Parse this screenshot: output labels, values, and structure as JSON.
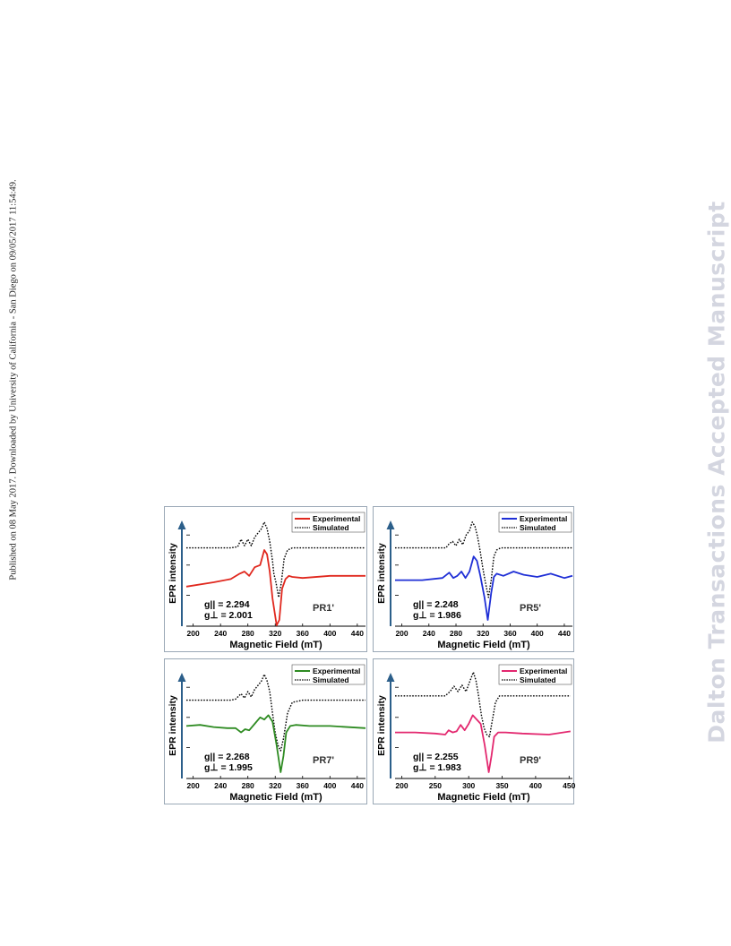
{
  "side_note": "Published on 08 May 2017. Downloaded by University of California - San Diego on 09/05/2017 11:54:49.",
  "watermark": "Dalton Transactions Accepted Manuscript",
  "colors": {
    "simulated": "#000000",
    "axis_arrow": "#2c5f8a",
    "border": "#9aa8b6"
  },
  "chart_data": [
    {
      "type": "line",
      "panel_label": "PR1'",
      "xlabel": "Magnetic Field (mT)",
      "ylabel": "EPR intensity",
      "xticks": [
        200,
        240,
        280,
        320,
        360,
        400,
        440
      ],
      "xlim": [
        190,
        452
      ],
      "g_parallel": "g|| = 2.294",
      "g_perp": "g⊥ = 2.001",
      "series": [
        {
          "name": "Experimental",
          "color": "#e0281e",
          "style": "solid",
          "x": [
            190,
            230,
            255,
            268,
            275,
            282,
            290,
            298,
            304,
            308,
            312,
            316,
            322,
            326,
            330,
            335,
            340,
            345,
            360,
            400,
            452
          ],
          "y": [
            0.36,
            0.4,
            0.43,
            0.48,
            0.5,
            0.46,
            0.54,
            0.56,
            0.7,
            0.66,
            0.5,
            0.25,
            0.0,
            0.05,
            0.34,
            0.43,
            0.46,
            0.45,
            0.44,
            0.46,
            0.46
          ]
        },
        {
          "name": "Simulated",
          "color": "#000000",
          "style": "dotted",
          "x": [
            190,
            255,
            265,
            270,
            275,
            280,
            285,
            290,
            295,
            300,
            304,
            308,
            312,
            316,
            318,
            321,
            325,
            329,
            333,
            338,
            345,
            360,
            452
          ],
          "y": [
            0.72,
            0.72,
            0.73,
            0.8,
            0.74,
            0.8,
            0.74,
            0.82,
            0.86,
            0.9,
            0.96,
            0.9,
            0.78,
            0.6,
            0.48,
            0.4,
            0.26,
            0.4,
            0.62,
            0.7,
            0.72,
            0.72,
            0.72
          ]
        }
      ]
    },
    {
      "type": "line",
      "panel_label": "PR5'",
      "xlabel": "Magnetic Field (mT)",
      "ylabel": "EPR intensity",
      "xticks": [
        200,
        240,
        280,
        320,
        360,
        400,
        440
      ],
      "xlim": [
        190,
        452
      ],
      "g_parallel": "g|| = 2.248",
      "g_perp": "g⊥ = 1.986",
      "series": [
        {
          "name": "Experimental",
          "color": "#1f2fd6",
          "style": "solid",
          "x": [
            190,
            230,
            260,
            270,
            276,
            282,
            288,
            294,
            300,
            306,
            311,
            316,
            322,
            327,
            332,
            336,
            340,
            350,
            365,
            380,
            400,
            420,
            440,
            452
          ],
          "y": [
            0.42,
            0.42,
            0.44,
            0.49,
            0.44,
            0.46,
            0.5,
            0.44,
            0.5,
            0.64,
            0.6,
            0.46,
            0.26,
            0.05,
            0.3,
            0.45,
            0.48,
            0.46,
            0.5,
            0.47,
            0.45,
            0.48,
            0.44,
            0.46
          ]
        },
        {
          "name": "Simulated",
          "color": "#000000",
          "style": "dotted",
          "x": [
            190,
            265,
            270,
            275,
            280,
            285,
            290,
            295,
            300,
            304,
            308,
            312,
            316,
            320,
            324,
            328,
            332,
            336,
            340,
            346,
            360,
            452
          ],
          "y": [
            0.72,
            0.72,
            0.76,
            0.78,
            0.74,
            0.8,
            0.75,
            0.84,
            0.88,
            0.96,
            0.92,
            0.82,
            0.68,
            0.52,
            0.38,
            0.26,
            0.42,
            0.64,
            0.7,
            0.72,
            0.72,
            0.72
          ]
        }
      ]
    },
    {
      "type": "line",
      "panel_label": "PR7'",
      "xlabel": "Magnetic Field (mT)",
      "ylabel": "EPR intensity",
      "xticks": [
        200,
        240,
        280,
        320,
        360,
        400,
        440
      ],
      "xlim": [
        190,
        452
      ],
      "g_parallel": "g|| = 2.268",
      "g_perp": "g⊥ = 1.995",
      "series": [
        {
          "name": "Experimental",
          "color": "#2e8b22",
          "style": "solid",
          "x": [
            190,
            210,
            230,
            250,
            262,
            270,
            276,
            282,
            290,
            298,
            304,
            310,
            316,
            322,
            328,
            332,
            336,
            342,
            350,
            370,
            400,
            452
          ],
          "y": [
            0.48,
            0.49,
            0.47,
            0.46,
            0.46,
            0.42,
            0.45,
            0.44,
            0.5,
            0.56,
            0.54,
            0.58,
            0.52,
            0.3,
            0.05,
            0.2,
            0.42,
            0.48,
            0.49,
            0.48,
            0.48,
            0.46
          ]
        },
        {
          "name": "Simulated",
          "color": "#000000",
          "style": "dotted",
          "x": [
            190,
            255,
            262,
            270,
            275,
            280,
            285,
            290,
            295,
            300,
            304,
            308,
            312,
            316,
            320,
            324,
            328,
            332,
            338,
            345,
            360,
            452
          ],
          "y": [
            0.72,
            0.72,
            0.73,
            0.78,
            0.74,
            0.8,
            0.75,
            0.82,
            0.86,
            0.9,
            0.96,
            0.9,
            0.8,
            0.6,
            0.42,
            0.3,
            0.25,
            0.36,
            0.6,
            0.7,
            0.72,
            0.72
          ]
        }
      ]
    },
    {
      "type": "line",
      "panel_label": "PR9'",
      "xlabel": "Magnetic Field (mT)",
      "ylabel": "EPR intensity",
      "xticks": [
        200,
        250,
        300,
        350,
        400,
        450
      ],
      "xlim": [
        190,
        455
      ],
      "g_parallel": "g|| = 2.255",
      "g_perp": "g⊥ = 1.983",
      "series": [
        {
          "name": "Experimental",
          "color": "#e3286f",
          "style": "solid",
          "x": [
            190,
            220,
            250,
            265,
            270,
            276,
            282,
            288,
            294,
            300,
            306,
            312,
            318,
            324,
            330,
            334,
            338,
            344,
            355,
            380,
            420,
            452
          ],
          "y": [
            0.42,
            0.42,
            0.41,
            0.4,
            0.44,
            0.42,
            0.43,
            0.49,
            0.44,
            0.5,
            0.58,
            0.54,
            0.5,
            0.3,
            0.05,
            0.2,
            0.38,
            0.42,
            0.42,
            0.41,
            0.4,
            0.43
          ]
        },
        {
          "name": "Simulated",
          "color": "#000000",
          "style": "dotted",
          "x": [
            190,
            265,
            272,
            278,
            284,
            290,
            296,
            302,
            307,
            311,
            315,
            319,
            323,
            327,
            331,
            335,
            340,
            346,
            360,
            452
          ],
          "y": [
            0.76,
            0.76,
            0.8,
            0.85,
            0.8,
            0.86,
            0.8,
            0.9,
            0.98,
            0.9,
            0.75,
            0.58,
            0.46,
            0.4,
            0.38,
            0.52,
            0.7,
            0.76,
            0.76,
            0.76
          ]
        }
      ]
    }
  ]
}
